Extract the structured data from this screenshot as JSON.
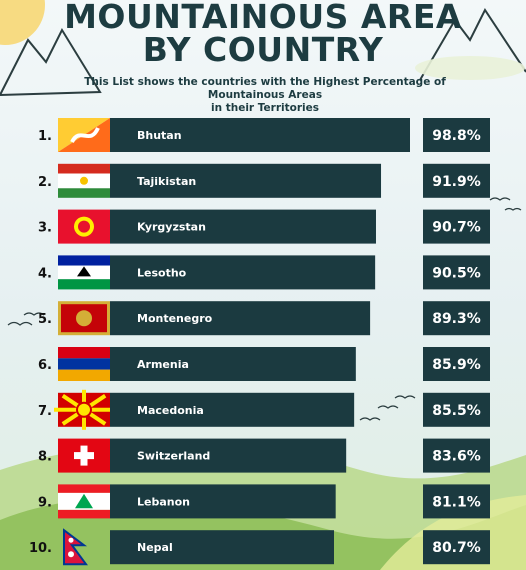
{
  "header": {
    "title_line1": "MOUNTAINOUS AREA",
    "title_line2": "BY COUNTRY",
    "subtitle_line1": "This List shows the countries with the Highest Percentage of Mountainous Areas",
    "subtitle_line2": "in their Territories"
  },
  "chart_data": {
    "type": "bar",
    "orientation": "horizontal",
    "title": "MOUNTAINOUS AREA BY COUNTRY",
    "subtitle": "This List shows the countries with the Highest Percentage of Mountainous Areas in their Territories",
    "ranks": [
      "1.",
      "2.",
      "3.",
      "4.",
      "5.",
      "6.",
      "7.",
      "8.",
      "9.",
      "10."
    ],
    "categories": [
      "Bhutan",
      "Tajikistan",
      "Kyrgyzstan",
      "Lesotho",
      "Montenegro",
      "Armenia",
      "Macedonia",
      "Switzerland",
      "Lebanon",
      "Nepal"
    ],
    "values": [
      98.8,
      91.9,
      90.7,
      90.5,
      89.3,
      85.9,
      85.5,
      83.6,
      81.1,
      80.7
    ],
    "value_labels": [
      "98.8%",
      "91.9%",
      "90.7%",
      "90.5%",
      "89.3%",
      "85.9%",
      "85.5%",
      "83.6%",
      "81.1%",
      "80.7%"
    ],
    "flag_icons": [
      "bhutan-flag-icon",
      "tajikistan-flag-icon",
      "kyrgyzstan-flag-icon",
      "lesotho-flag-icon",
      "montenegro-flag-icon",
      "armenia-flag-icon",
      "macedonia-flag-icon",
      "switzerland-flag-icon",
      "lebanon-flag-icon",
      "nepal-flag-icon"
    ],
    "xlabel": "",
    "ylabel": "",
    "grid": false,
    "legend": "none"
  },
  "colors": {
    "bar": "#1b3a40",
    "title": "#1d3c41",
    "value_box": "#1b3a40"
  }
}
